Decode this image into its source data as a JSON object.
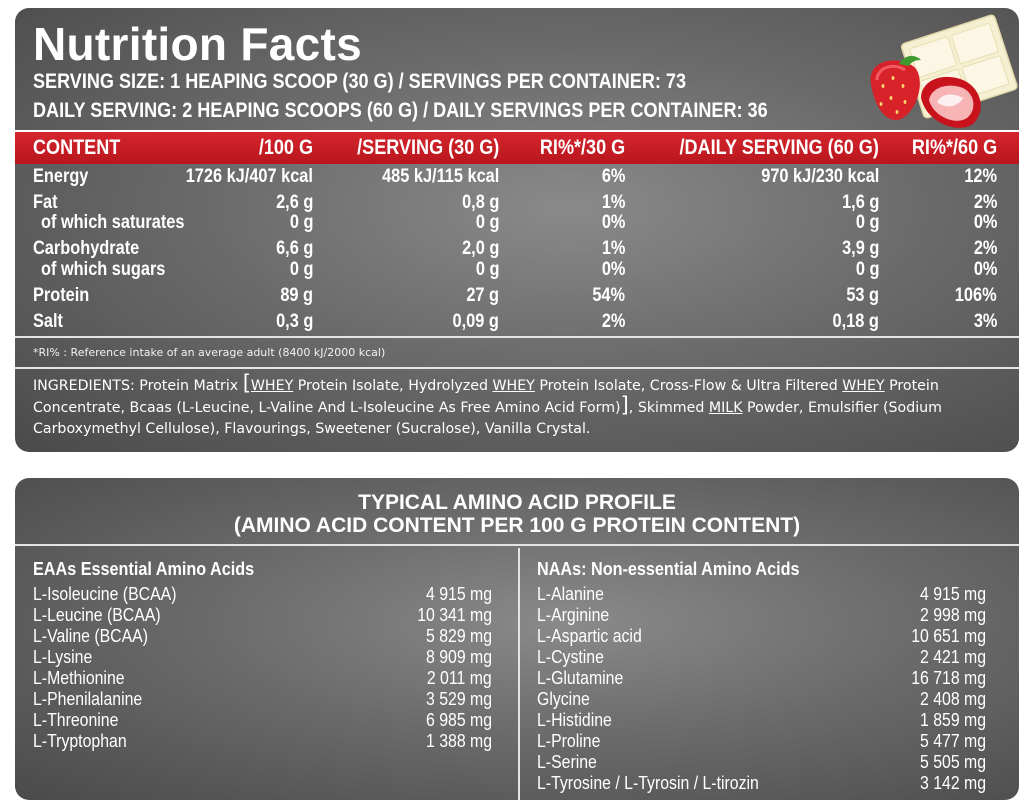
{
  "title": "Nutrition Facts",
  "serving_size": "SERVING SIZE: 1 HEAPING SCOOP  (30 G) / SERVINGS PER CONTAINER: 73",
  "daily_serving": "DAILY SERVING: 2 HEAPING SCOOPS (60 G) / DAILY SERVINGS PER CONTAINER: 36",
  "table": {
    "headers": [
      "CONTENT",
      "/100 G",
      "/SERVING (30 G)",
      "RI%*/30 G",
      "/DAILY SERVING (60 G)",
      "RI%*/60 G"
    ],
    "rows": [
      [
        "Energy",
        "1726 kJ/407 kcal",
        "485 kJ/115 kcal",
        "6%",
        "970 kJ/230 kcal",
        "12%"
      ],
      [
        "Fat",
        "2,6 g",
        "0,8 g",
        "1%",
        "1,6 g",
        "2%"
      ],
      [
        "of which saturates",
        "0 g",
        "0 g",
        "0%",
        "0 g",
        "0%"
      ],
      [
        "Carbohydrate",
        "6,6 g",
        "2,0 g",
        "1%",
        "3,9 g",
        "2%"
      ],
      [
        "of which sugars",
        "0 g",
        "0 g",
        "0%",
        "0 g",
        "0%"
      ],
      [
        "Protein",
        "89 g",
        "27 g",
        "54%",
        "53 g",
        "106%"
      ],
      [
        "Salt",
        "0,3 g",
        "0,09 g",
        "2%",
        "0,18 g",
        "3%"
      ]
    ]
  },
  "footnote": "*RI% : Reference intake of an average adult (8400 kJ/2000 kcal)",
  "ingredients": {
    "label": "INGREDIENTS:",
    "t1": " Protein Matrix ",
    "bracket_open": "[",
    "whey": "WHEY",
    "t2": " Protein Isolate, Hydrolyzed ",
    "t3": " Protein Isolate, Cross-Flow & Ultra Filtered ",
    "t4": " Protein Concentrate, Bcaas (L-Leucine, L-Valine And L-Isoleucine As Free Amino Acid Form)",
    "bracket_close": "]",
    "t5": ", Skimmed ",
    "milk": "MILK",
    "t6": " Powder, Emulsifier (Sodium Carboxymethyl Cellulose), Flavourings, Sweetener (Sucralose), Vanilla Crystal."
  },
  "amino": {
    "title_line1": "TYPICAL AMINO ACID PROFILE",
    "title_line2": "(AMINO ACID CONTENT PER 100 G PROTEIN CONTENT)",
    "essential": {
      "heading": "EAAs Essential Amino Acids",
      "items": [
        {
          "name": "L-Isoleucine (BCAA)",
          "value": "4 915 mg"
        },
        {
          "name": "L-Leucine (BCAA)",
          "value": "10 341 mg"
        },
        {
          "name": "L-Valine (BCAA)",
          "value": "5 829 mg"
        },
        {
          "name": "L-Lysine",
          "value": "8 909 mg"
        },
        {
          "name": "L-Methionine",
          "value": "2 011 mg"
        },
        {
          "name": "L-Phenilalanine",
          "value": "3 529 mg"
        },
        {
          "name": "L-Threonine",
          "value": "6 985 mg"
        },
        {
          "name": "L-Tryptophan",
          "value": "1 388 mg"
        }
      ]
    },
    "nonessential": {
      "heading": "NAAs: Non-essential Amino Acids",
      "items": [
        {
          "name": "L-Alanine",
          "value": "4 915 mg"
        },
        {
          "name": "L-Arginine",
          "value": "2 998 mg"
        },
        {
          "name": "L-Aspartic acid",
          "value": "10 651 mg"
        },
        {
          "name": "L-Cystine",
          "value": "2 421 mg"
        },
        {
          "name": "L-Glutamine",
          "value": "16 718 mg"
        },
        {
          "name": "Glycine",
          "value": "2 408 mg"
        },
        {
          "name": "L-Histidine",
          "value": "1 859 mg"
        },
        {
          "name": "L-Proline",
          "value": "5 477 mg"
        },
        {
          "name": "L-Serine",
          "value": "5 505 mg"
        },
        {
          "name": "L-Tyrosine / L-Tyrosin / L-tirozin",
          "value": "3 142 mg"
        }
      ]
    }
  },
  "colors": {
    "panel": "#6b6b6b",
    "header_bar": "#c81e25",
    "text": "#ffffff"
  }
}
